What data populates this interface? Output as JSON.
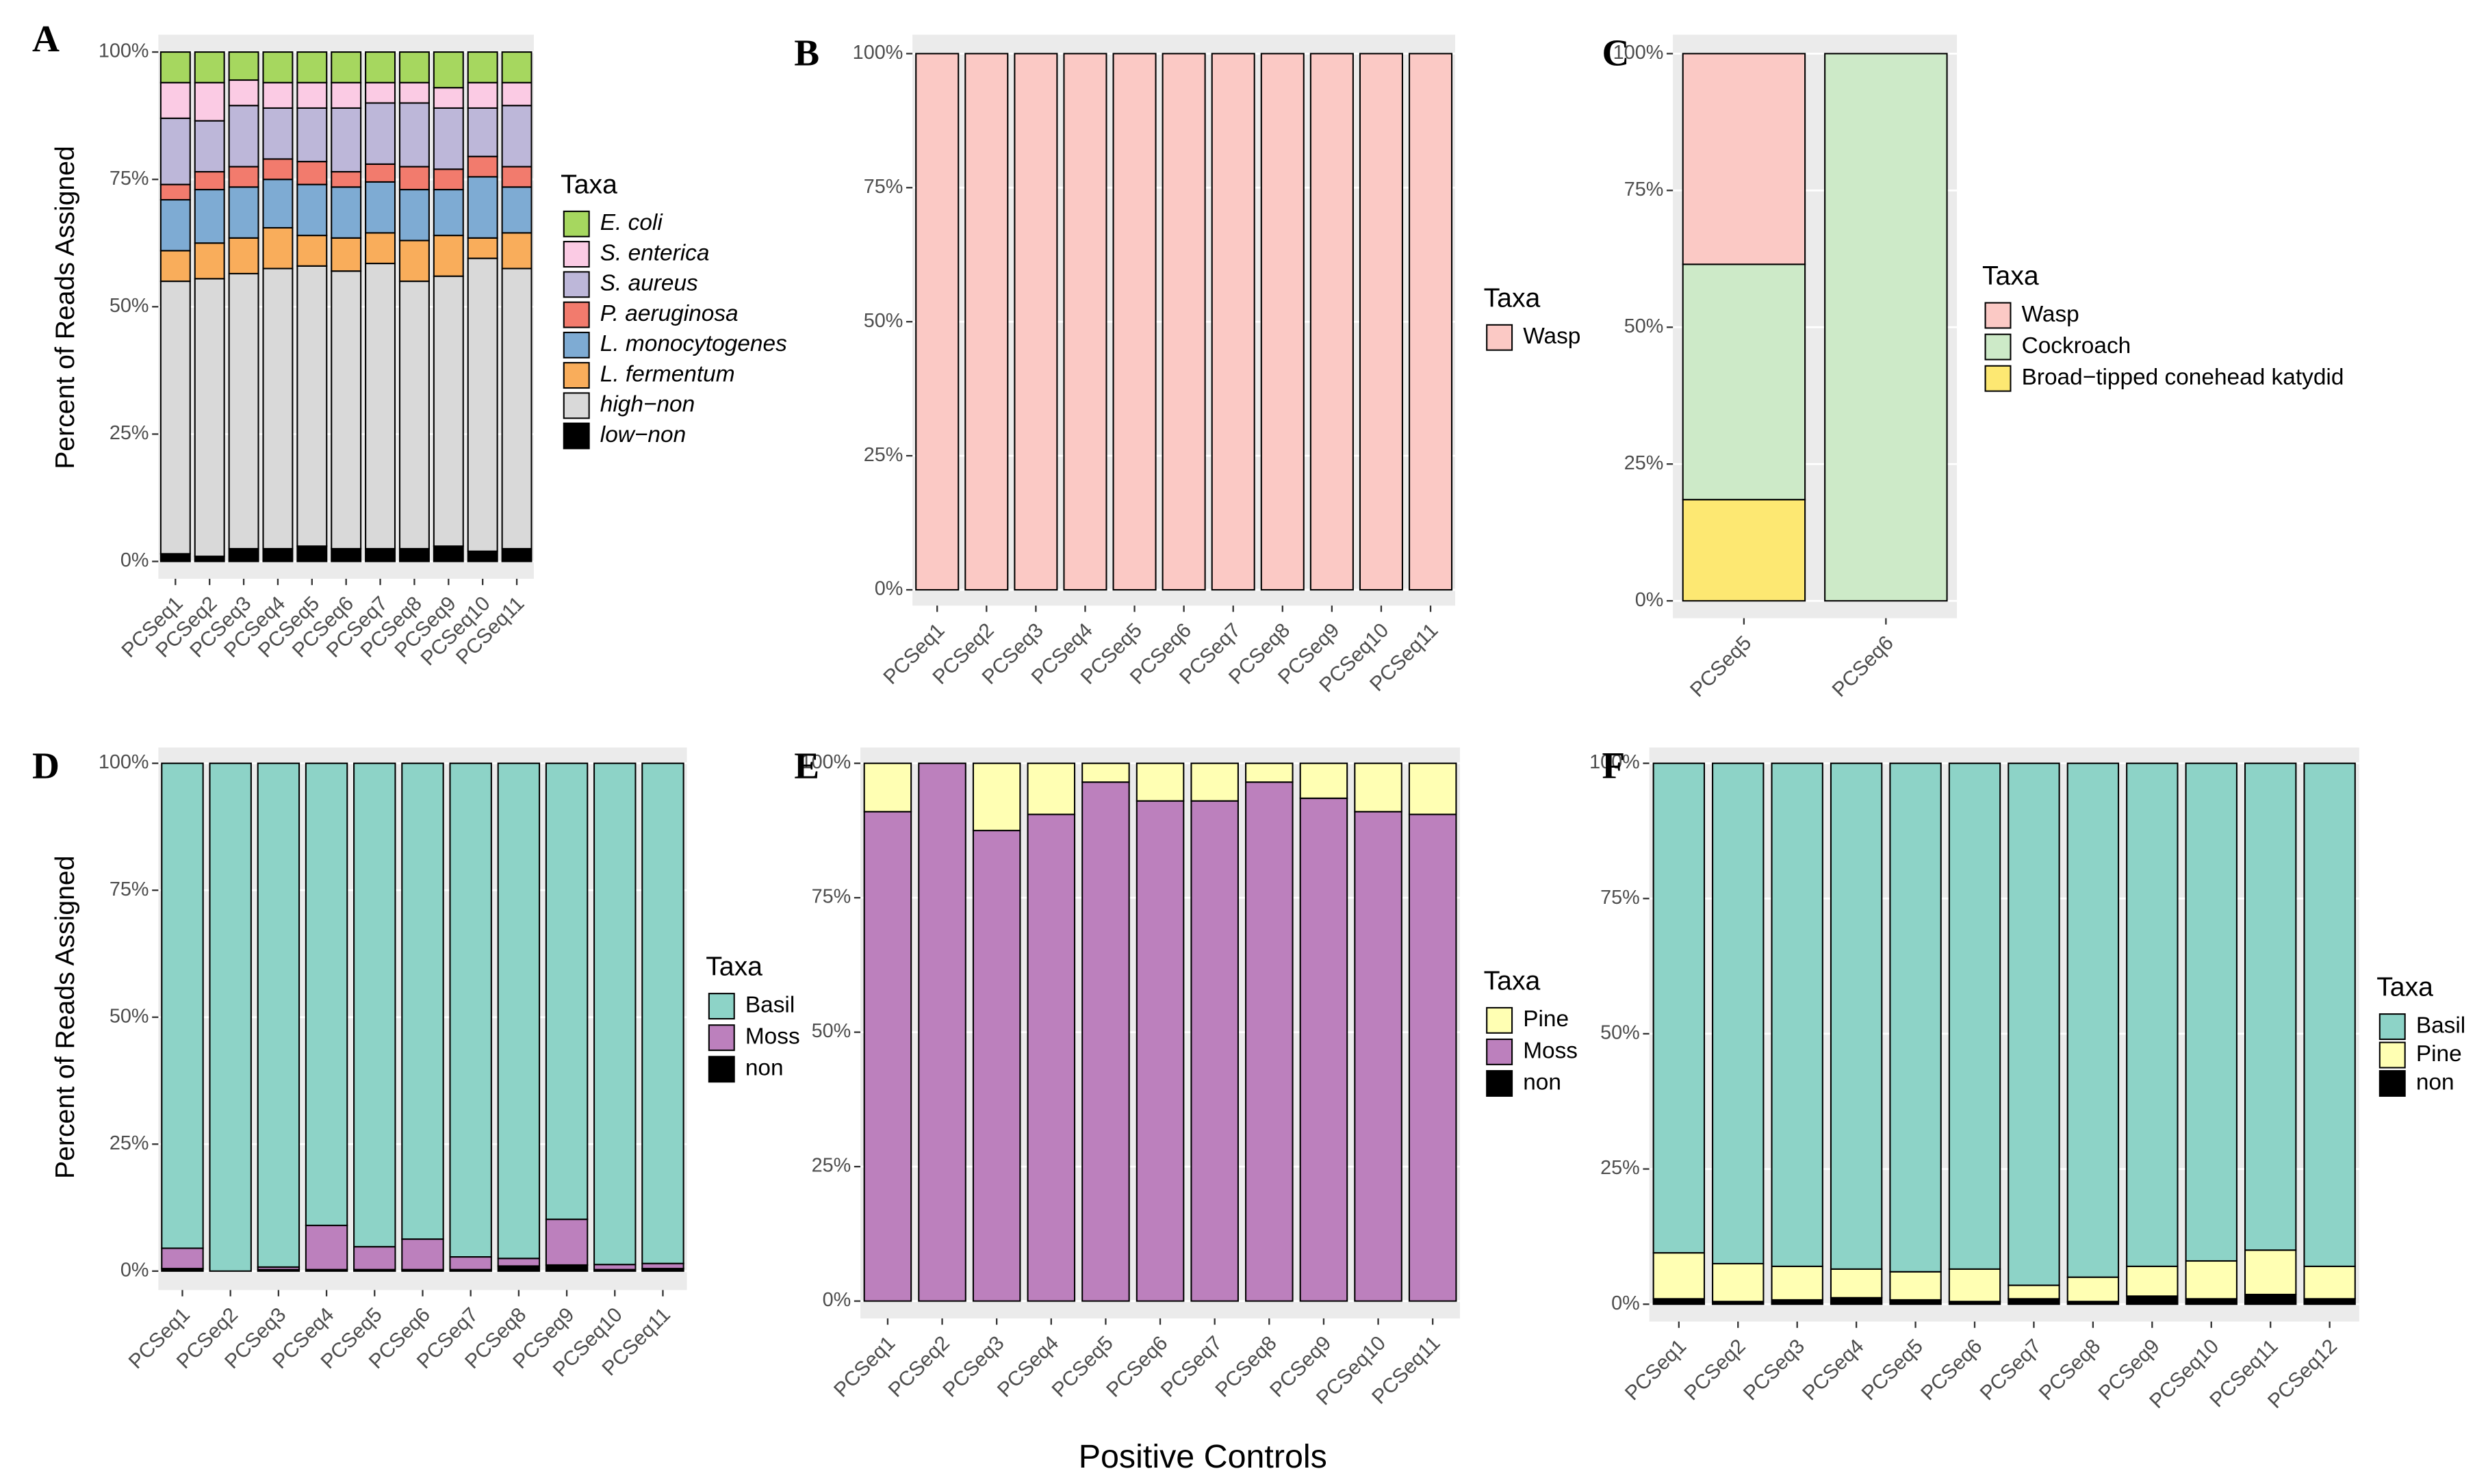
{
  "chart_data": [
    {
      "type": "bar",
      "label": "A",
      "ylabel": "Percent of Reads Assigned",
      "legend_title": "Taxa",
      "legend_italic": true,
      "categories": [
        "PCSeq1",
        "PCSeq2",
        "PCSeq3",
        "PCSeq4",
        "PCSeq5",
        "PCSeq6",
        "PCSeq7",
        "PCSeq8",
        "PCSeq9",
        "PCSeq10",
        "PCSeq11"
      ],
      "ylim": [
        0,
        100
      ],
      "yticks": [
        {
          "value": 0,
          "label": "0%"
        },
        {
          "value": 25,
          "label": "25%"
        },
        {
          "value": 50,
          "label": "50%"
        },
        {
          "value": 75,
          "label": "75%"
        },
        {
          "value": 100,
          "label": "100%"
        }
      ],
      "series": [
        {
          "name": "E. coli",
          "color": "#a6d75f",
          "values": [
            6,
            6,
            5.5,
            6,
            6,
            6,
            6,
            6,
            7,
            6,
            6
          ]
        },
        {
          "name": "S. enterica",
          "color": "#fbcbe4",
          "values": [
            7,
            7.5,
            5,
            5,
            5,
            5,
            4,
            4,
            4,
            5,
            4.5
          ]
        },
        {
          "name": "S. aureus",
          "color": "#bdb7d9",
          "values": [
            13,
            10,
            12,
            10,
            10.5,
            12.5,
            12,
            12.5,
            12,
            9.5,
            12
          ]
        },
        {
          "name": "P. aeruginosa",
          "color": "#f27b6d",
          "values": [
            3,
            3.5,
            4,
            4,
            4.5,
            3,
            3.5,
            4.5,
            4,
            4,
            4
          ]
        },
        {
          "name": "L. monocytogenes",
          "color": "#7eabd3",
          "values": [
            10,
            10.5,
            10,
            9.5,
            10,
            10,
            10,
            10,
            9,
            12,
            9
          ]
        },
        {
          "name": "L. fermentum",
          "color": "#f9ad5b",
          "values": [
            6,
            7,
            7,
            8,
            6,
            6.5,
            6,
            8,
            8,
            4,
            7
          ]
        },
        {
          "name": "high−non",
          "color": "#d9d9d9",
          "values": [
            53.5,
            54.5,
            54,
            55,
            55,
            54.5,
            56,
            52.5,
            53,
            57.5,
            55
          ]
        },
        {
          "name": "low−non",
          "color": "#000000",
          "values": [
            1.5,
            1,
            2.5,
            2.5,
            3,
            2.5,
            2.5,
            2.5,
            3,
            2,
            2.5
          ]
        }
      ]
    },
    {
      "type": "bar",
      "label": "B",
      "legend_title": "Taxa",
      "categories": [
        "PCSeq1",
        "PCSeq2",
        "PCSeq3",
        "PCSeq4",
        "PCSeq5",
        "PCSeq6",
        "PCSeq7",
        "PCSeq8",
        "PCSeq9",
        "PCSeq10",
        "PCSeq11"
      ],
      "ylim": [
        0,
        100
      ],
      "yticks": [
        {
          "value": 0,
          "label": "0%"
        },
        {
          "value": 25,
          "label": "25%"
        },
        {
          "value": 50,
          "label": "50%"
        },
        {
          "value": 75,
          "label": "75%"
        },
        {
          "value": 100,
          "label": "100%"
        }
      ],
      "series": [
        {
          "name": "Wasp",
          "color": "#fbc9c5",
          "values": [
            100,
            100,
            100,
            100,
            100,
            100,
            100,
            100,
            100,
            100,
            100
          ]
        }
      ]
    },
    {
      "type": "bar",
      "label": "C",
      "legend_title": "Taxa",
      "categories": [
        "PCSeq5",
        "PCSeq6"
      ],
      "ylim": [
        0,
        100
      ],
      "yticks": [
        {
          "value": 0,
          "label": "0%"
        },
        {
          "value": 25,
          "label": "25%"
        },
        {
          "value": 50,
          "label": "50%"
        },
        {
          "value": 75,
          "label": "75%"
        },
        {
          "value": 100,
          "label": "100%"
        }
      ],
      "series": [
        {
          "name": "Wasp",
          "color": "#fbc9c5",
          "values": [
            38.5,
            0
          ]
        },
        {
          "name": "Cockroach",
          "color": "#cdeac8",
          "values": [
            43,
            100
          ]
        },
        {
          "name": "Broad−tipped conehead katydid",
          "color": "#fde872",
          "values": [
            18.5,
            0
          ]
        }
      ]
    },
    {
      "type": "bar",
      "label": "D",
      "ylabel": "Percent of Reads Assigned",
      "legend_title": "Taxa",
      "categories": [
        "PCSeq1",
        "PCSeq2",
        "PCSeq3",
        "PCSeq4",
        "PCSeq5",
        "PCSeq6",
        "PCSeq7",
        "PCSeq8",
        "PCSeq9",
        "PCSeq10",
        "PCSeq11"
      ],
      "ylim": [
        0,
        100
      ],
      "yticks": [
        {
          "value": 0,
          "label": "0%"
        },
        {
          "value": 25,
          "label": "25%"
        },
        {
          "value": 50,
          "label": "50%"
        },
        {
          "value": 75,
          "label": "75%"
        },
        {
          "value": 100,
          "label": "100%"
        }
      ],
      "series": [
        {
          "name": "Basil",
          "color": "#8dd3c7",
          "values": [
            95.5,
            100,
            99.2,
            91,
            95.2,
            93.7,
            97.2,
            97.5,
            89.8,
            98.7,
            98.5
          ]
        },
        {
          "name": "Moss",
          "color": "#bc80bd",
          "values": [
            4,
            0,
            0.5,
            8.7,
            4.5,
            6,
            2.5,
            1.5,
            9,
            1,
            1
          ]
        },
        {
          "name": "non",
          "color": "#000000",
          "values": [
            0.5,
            0,
            0.3,
            0.3,
            0.3,
            0.3,
            0.3,
            1,
            1.2,
            0.3,
            0.5
          ]
        }
      ]
    },
    {
      "type": "bar",
      "label": "E",
      "xlabel": "Positive Controls",
      "legend_title": "Taxa",
      "categories": [
        "PCSeq1",
        "PCSeq2",
        "PCSeq3",
        "PCSeq4",
        "PCSeq5",
        "PCSeq6",
        "PCSeq7",
        "PCSeq8",
        "PCSeq9",
        "PCSeq10",
        "PCSeq11"
      ],
      "ylim": [
        0,
        100
      ],
      "yticks": [
        {
          "value": 0,
          "label": "0%"
        },
        {
          "value": 25,
          "label": "25%"
        },
        {
          "value": 50,
          "label": "50%"
        },
        {
          "value": 75,
          "label": "75%"
        },
        {
          "value": 100,
          "label": "100%"
        }
      ],
      "series": [
        {
          "name": "Pine",
          "color": "#ffffb3",
          "values": [
            9,
            0,
            12.5,
            9.5,
            3.5,
            7,
            7,
            3.5,
            6.5,
            9,
            9.5
          ]
        },
        {
          "name": "Moss",
          "color": "#bc80bd",
          "values": [
            91,
            100,
            87.5,
            90.5,
            96.5,
            93,
            93,
            96.5,
            93.5,
            91,
            90.5
          ]
        },
        {
          "name": "non",
          "color": "#000000",
          "values": [
            0,
            0,
            0,
            0,
            0,
            0,
            0,
            0,
            0,
            0,
            0
          ]
        }
      ]
    },
    {
      "type": "bar",
      "label": "F",
      "legend_title": "Taxa",
      "categories": [
        "PCSeq1",
        "PCSeq2",
        "PCSeq3",
        "PCSeq4",
        "PCSeq5",
        "PCSeq6",
        "PCSeq7",
        "PCSeq8",
        "PCSeq9",
        "PCSeq10",
        "PCSeq11",
        "PCSeq12"
      ],
      "ylim": [
        0,
        100
      ],
      "yticks": [
        {
          "value": 0,
          "label": "0%"
        },
        {
          "value": 25,
          "label": "25%"
        },
        {
          "value": 50,
          "label": "50%"
        },
        {
          "value": 75,
          "label": "75%"
        },
        {
          "value": 100,
          "label": "100%"
        }
      ],
      "series": [
        {
          "name": "Basil",
          "color": "#8dd3c7",
          "values": [
            90.5,
            92.5,
            93,
            93.5,
            94,
            93.5,
            96.5,
            95,
            93,
            92,
            90,
            93
          ]
        },
        {
          "name": "Pine",
          "color": "#ffffb3",
          "values": [
            8.5,
            7,
            6.2,
            5.3,
            5.2,
            6,
            2.5,
            4.5,
            5.5,
            7,
            8.2,
            6
          ]
        },
        {
          "name": "non",
          "color": "#000000",
          "values": [
            1,
            0.5,
            0.8,
            1.2,
            0.8,
            0.5,
            1,
            0.5,
            1.5,
            1,
            1.8,
            1
          ]
        }
      ]
    }
  ]
}
